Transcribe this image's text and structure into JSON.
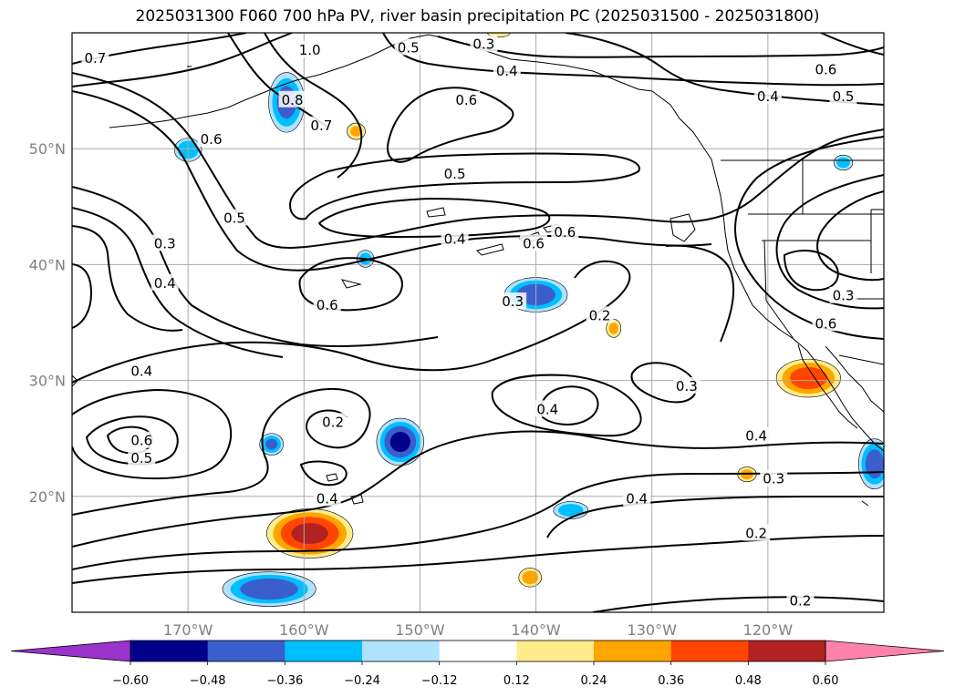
{
  "title": "2025031300 F060 700 hPa PV, river basin precipitation PC (2025031500 - 2025031800)",
  "map": {
    "projection": "plate carree",
    "lon_range": [
      -180,
      -110
    ],
    "lat_range": [
      10,
      60
    ],
    "lon_ticks": [
      {
        "lon": -170,
        "label": "170°W"
      },
      {
        "lon": -160,
        "label": "160°W"
      },
      {
        "lon": -150,
        "label": "150°W"
      },
      {
        "lon": -140,
        "label": "140°W"
      },
      {
        "lon": -130,
        "label": "130°W"
      },
      {
        "lon": -120,
        "label": "120°W"
      }
    ],
    "lat_ticks": [
      {
        "lat": 20,
        "label": "20°N"
      },
      {
        "lat": 30,
        "label": "30°N"
      },
      {
        "lat": 40,
        "label": "40°N"
      },
      {
        "lat": 50,
        "label": "50°N"
      }
    ],
    "gridlines": true,
    "contour_labels": [
      {
        "text": "0.7",
        "lon": -178,
        "lat": 57.8
      },
      {
        "text": "1.0",
        "lon": -159.5,
        "lat": 58.5
      },
      {
        "text": "0.5",
        "lon": -151,
        "lat": 58.7
      },
      {
        "text": "0.3",
        "lon": -144.5,
        "lat": 59.0
      },
      {
        "text": "0.4",
        "lon": -142.5,
        "lat": 56.7
      },
      {
        "text": "0.6",
        "lon": -146,
        "lat": 54.2
      },
      {
        "text": "0.6",
        "lon": -115,
        "lat": 56.8
      },
      {
        "text": "0.5",
        "lon": -113.5,
        "lat": 54.5
      },
      {
        "text": "0.4",
        "lon": -120,
        "lat": 54.5
      },
      {
        "text": "0.8",
        "lon": -161,
        "lat": 54.2
      },
      {
        "text": "0.6",
        "lon": -168,
        "lat": 50.8
      },
      {
        "text": "0.7",
        "lon": -158.5,
        "lat": 52
      },
      {
        "text": "0.5",
        "lon": -166,
        "lat": 44
      },
      {
        "text": "0.5",
        "lon": -147,
        "lat": 47.8
      },
      {
        "text": "0.4",
        "lon": -147,
        "lat": 42.2
      },
      {
        "text": "0.3",
        "lon": -172,
        "lat": 41.8
      },
      {
        "text": "0.4",
        "lon": -172,
        "lat": 38.4
      },
      {
        "text": "0.6",
        "lon": -158,
        "lat": 36.5
      },
      {
        "text": "0.6",
        "lon": -140.2,
        "lat": 41.8
      },
      {
        "text": "0.6",
        "lon": -137.5,
        "lat": 42.8
      },
      {
        "text": "0.3",
        "lon": -142,
        "lat": 36.8
      },
      {
        "text": "0.2",
        "lon": -134.5,
        "lat": 35.6
      },
      {
        "text": "0.3",
        "lon": -113.5,
        "lat": 37.3
      },
      {
        "text": "0.6",
        "lon": -115,
        "lat": 34.9
      },
      {
        "text": "0.4",
        "lon": -174,
        "lat": 30.8
      },
      {
        "text": "0.3",
        "lon": -127,
        "lat": 29.5
      },
      {
        "text": "0.4",
        "lon": -139,
        "lat": 27.5
      },
      {
        "text": "0.2",
        "lon": -157.5,
        "lat": 26.4
      },
      {
        "text": "0.6",
        "lon": -174,
        "lat": 24.8
      },
      {
        "text": "0.5",
        "lon": -174,
        "lat": 23.3
      },
      {
        "text": "0.4",
        "lon": -121,
        "lat": 25.2
      },
      {
        "text": "0.3",
        "lon": -119.5,
        "lat": 21.5
      },
      {
        "text": "0.4",
        "lon": -158,
        "lat": 19.8
      },
      {
        "text": "0.4",
        "lon": -131.3,
        "lat": 19.8
      },
      {
        "text": "0.2",
        "lon": -121,
        "lat": 16.8
      },
      {
        "text": "0.2",
        "lon": -117.2,
        "lat": 11.0
      }
    ],
    "precip_pc_blobs": [
      {
        "lon": -161.5,
        "lat": 54.0,
        "rlon": 1.8,
        "rlat": 3.0,
        "peak": -0.4
      },
      {
        "lon": -170.0,
        "lat": 49.9,
        "rlon": 1.4,
        "rlat": 1.2,
        "peak": -0.35
      },
      {
        "lon": -155.5,
        "lat": 51.5,
        "rlon": 1.0,
        "rlat": 0.9,
        "peak": 0.26
      },
      {
        "lon": -154.7,
        "lat": 40.5,
        "rlon": 0.9,
        "rlat": 0.9,
        "peak": -0.3
      },
      {
        "lon": -140.0,
        "lat": 37.4,
        "rlon": 3.1,
        "rlat": 1.7,
        "peak": -0.45
      },
      {
        "lon": -133.3,
        "lat": 34.5,
        "rlon": 0.8,
        "rlat": 1.0,
        "peak": 0.26
      },
      {
        "lon": -116.5,
        "lat": 30.2,
        "rlon": 3.2,
        "rlat": 1.9,
        "peak": 0.42
      },
      {
        "lon": -151.7,
        "lat": 24.7,
        "rlon": 2.3,
        "rlat": 2.3,
        "peak": -0.5
      },
      {
        "lon": -162.8,
        "lat": 24.5,
        "rlon": 1.2,
        "rlat": 1.1,
        "peak": -0.38
      },
      {
        "lon": -159.5,
        "lat": 16.8,
        "rlon": 4.2,
        "rlat": 2.4,
        "peak": 0.5
      },
      {
        "lon": -163.0,
        "lat": 12.0,
        "rlon": 4.6,
        "rlat": 1.7,
        "peak": -0.45
      },
      {
        "lon": -110.8,
        "lat": 22.8,
        "rlon": 1.6,
        "rlat": 2.5,
        "peak": -0.42
      },
      {
        "lon": -113.5,
        "lat": 48.8,
        "rlon": 1.0,
        "rlat": 0.8,
        "peak": -0.3
      },
      {
        "lon": -137.0,
        "lat": 18.8,
        "rlon": 1.8,
        "rlat": 0.9,
        "peak": -0.32
      },
      {
        "lon": -121.8,
        "lat": 21.9,
        "rlon": 1.0,
        "rlat": 0.8,
        "peak": 0.28
      },
      {
        "lon": -140.5,
        "lat": 13.0,
        "rlon": 1.2,
        "rlat": 1.0,
        "peak": 0.3
      },
      {
        "lon": -143.2,
        "lat": 60.0,
        "rlon": 1.3,
        "rlat": 0.5,
        "peak": 0.22
      }
    ]
  },
  "colorbar": {
    "levels": [
      -0.6,
      -0.48,
      -0.36,
      -0.24,
      -0.12,
      0.12,
      0.24,
      0.36,
      0.48,
      0.6
    ],
    "tick_labels": [
      "−0.60",
      "−0.48",
      "−0.36",
      "−0.24",
      "−0.12",
      "0.12",
      "0.24",
      "0.36",
      "0.48",
      "0.60"
    ],
    "colors": [
      "#9933cc",
      "#00008b",
      "#3a5fcd",
      "#00bfff",
      "#b0e2ff",
      "#ffffff",
      "#ffec8b",
      "#ffa500",
      "#ff4500",
      "#b22222",
      "#ff82ab"
    ],
    "extend": "both"
  }
}
